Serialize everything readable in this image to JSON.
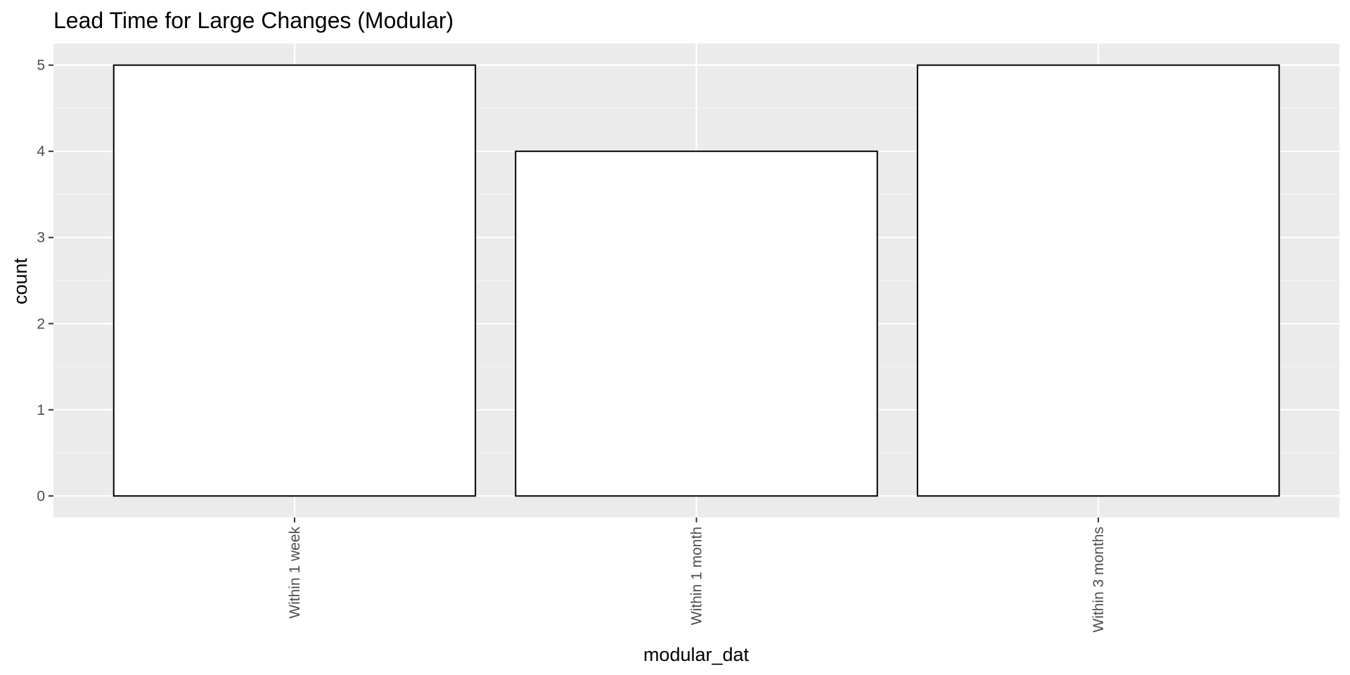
{
  "chart_data": {
    "type": "bar",
    "title": "Lead Time for Large Changes (Modular)",
    "xlabel": "modular_dat",
    "ylabel": "count",
    "categories": [
      "Within 1 week",
      "Within 1 month",
      "Within 3 months"
    ],
    "values": [
      5,
      4,
      5
    ],
    "ylim": [
      -0.25,
      5.25
    ],
    "yticks": [
      0,
      1,
      2,
      3,
      4,
      5
    ],
    "ytick_labels": [
      "0",
      "1",
      "2",
      "3",
      "4",
      "5"
    ],
    "grid": true,
    "legend": "none",
    "colors": {
      "panel_background": "#EBEBEB",
      "grid_major": "#FFFFFF",
      "grid_minor": "#F5F5F5",
      "bar_fill": "#FFFFFF",
      "bar_stroke": "#000000",
      "tick_text": "#4D4D4D",
      "tick_mark": "#333333"
    }
  }
}
